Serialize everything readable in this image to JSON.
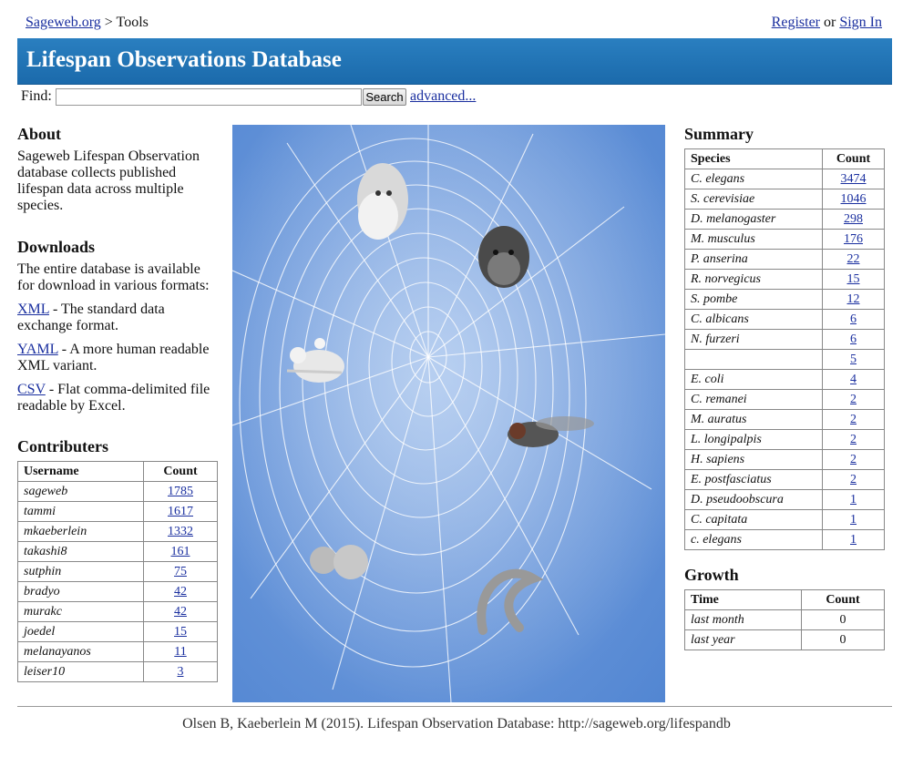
{
  "breadcrumb": {
    "home": "Sageweb.org",
    "separator": ">",
    "current": "Tools"
  },
  "account": {
    "register": "Register",
    "or": "or",
    "signin": "Sign In"
  },
  "header": {
    "title": "Lifespan Observations Database"
  },
  "search": {
    "label": "Find:",
    "value": "",
    "button": "Search",
    "advanced": "advanced..."
  },
  "about": {
    "title": "About",
    "text": "Sageweb Lifespan Observation database collects published lifespan data across multiple species."
  },
  "downloads": {
    "title": "Downloads",
    "intro": "The entire database is available for download in various formats:",
    "items": [
      {
        "link": "XML",
        "desc": " - The standard data exchange format."
      },
      {
        "link": "YAML",
        "desc": " - A more human readable XML variant."
      },
      {
        "link": "CSV",
        "desc": " - Flat comma-delimited file readable by Excel."
      }
    ]
  },
  "contributors": {
    "title": "Contributers",
    "col_user": "Username",
    "col_count": "Count",
    "rows": [
      {
        "user": "sageweb",
        "count": "1785"
      },
      {
        "user": "tammi",
        "count": "1617"
      },
      {
        "user": "mkaeberlein",
        "count": "1332"
      },
      {
        "user": "takashi8",
        "count": "161"
      },
      {
        "user": "sutphin",
        "count": "75"
      },
      {
        "user": "bradyo",
        "count": "42"
      },
      {
        "user": "murakc",
        "count": "42"
      },
      {
        "user": "joedel",
        "count": "15"
      },
      {
        "user": "melanayanos",
        "count": "11"
      },
      {
        "user": "leiser10",
        "count": "3"
      }
    ]
  },
  "summary": {
    "title": "Summary",
    "col_species": "Species",
    "col_count": "Count",
    "rows": [
      {
        "species": "C. elegans",
        "count": "3474"
      },
      {
        "species": "S. cerevisiae",
        "count": "1046"
      },
      {
        "species": "D. melanogaster",
        "count": "298"
      },
      {
        "species": "M. musculus",
        "count": "176"
      },
      {
        "species": "P. anserina",
        "count": "22"
      },
      {
        "species": "R. norvegicus",
        "count": "15"
      },
      {
        "species": "S. pombe",
        "count": "12"
      },
      {
        "species": "C. albicans",
        "count": "6"
      },
      {
        "species": "N. furzeri",
        "count": "6"
      },
      {
        "species": "",
        "count": "5"
      },
      {
        "species": "E. coli",
        "count": "4"
      },
      {
        "species": "C. remanei",
        "count": "2"
      },
      {
        "species": "M. auratus",
        "count": "2"
      },
      {
        "species": "L. longipalpis",
        "count": "2"
      },
      {
        "species": "H. sapiens",
        "count": "2"
      },
      {
        "species": "E. postfasciatus",
        "count": "2"
      },
      {
        "species": "D. pseudoobscura",
        "count": "1"
      },
      {
        "species": "C. capitata",
        "count": "1"
      },
      {
        "species": "c. elegans",
        "count": "1"
      }
    ]
  },
  "growth": {
    "title": "Growth",
    "col_time": "Time",
    "col_count": "Count",
    "rows": [
      {
        "time": "last month",
        "count": "0"
      },
      {
        "time": "last year",
        "count": "0"
      }
    ]
  },
  "hero": {
    "icons": [
      "darwin-head-icon",
      "monkey-head-icon",
      "mouse-icon",
      "fly-icon",
      "yeast-cells-icon",
      "worm-icon",
      "spider-web-icon"
    ]
  },
  "footer": {
    "citation": "Olsen B, Kaeberlein M (2015). Lifespan Observation Database: http://sageweb.org/lifespandb"
  },
  "colors": {
    "banner": "#1f72b5",
    "link": "#1a2f9f",
    "hero_bg": "#6b98db"
  }
}
